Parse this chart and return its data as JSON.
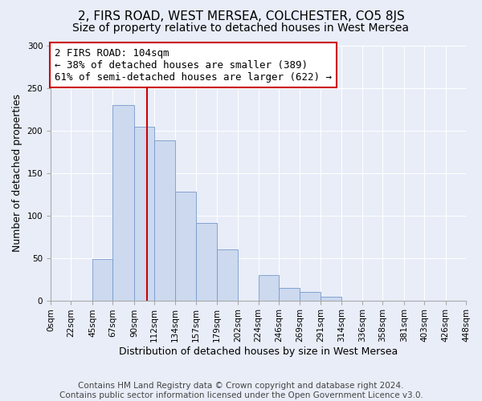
{
  "title": "2, FIRS ROAD, WEST MERSEA, COLCHESTER, CO5 8JS",
  "subtitle": "Size of property relative to detached houses in West Mersea",
  "xlabel": "Distribution of detached houses by size in West Mersea",
  "ylabel": "Number of detached properties",
  "bin_edges": [
    0,
    22,
    45,
    67,
    90,
    112,
    134,
    157,
    179,
    202,
    224,
    246,
    269,
    291,
    314,
    336,
    358,
    381,
    403,
    426,
    448
  ],
  "bin_labels": [
    "0sqm",
    "22sqm",
    "45sqm",
    "67sqm",
    "90sqm",
    "112sqm",
    "134sqm",
    "157sqm",
    "179sqm",
    "202sqm",
    "224sqm",
    "246sqm",
    "269sqm",
    "291sqm",
    "314sqm",
    "336sqm",
    "358sqm",
    "381sqm",
    "403sqm",
    "426sqm",
    "448sqm"
  ],
  "counts": [
    0,
    0,
    49,
    230,
    204,
    188,
    128,
    91,
    60,
    0,
    30,
    15,
    10,
    4,
    0,
    0,
    0,
    0,
    0,
    0
  ],
  "bar_color": "#ccd9ee",
  "bar_edge_color": "#7799cc",
  "vline_x": 104,
  "vline_color": "#cc0000",
  "annotation_text": "2 FIRS ROAD: 104sqm\n← 38% of detached houses are smaller (389)\n61% of semi-detached houses are larger (622) →",
  "annotation_box_color": "#ffffff",
  "annotation_box_edge": "#cc0000",
  "ylim": [
    0,
    300
  ],
  "yticks": [
    0,
    50,
    100,
    150,
    200,
    250,
    300
  ],
  "footer_text": "Contains HM Land Registry data © Crown copyright and database right 2024.\nContains public sector information licensed under the Open Government Licence v3.0.",
  "bg_color": "#e8edf8",
  "plot_bg_color": "#e8edf8",
  "grid_color": "#ffffff",
  "title_fontsize": 11,
  "subtitle_fontsize": 10,
  "axis_label_fontsize": 9,
  "tick_fontsize": 7.5,
  "annotation_fontsize": 9,
  "footer_fontsize": 7.5
}
